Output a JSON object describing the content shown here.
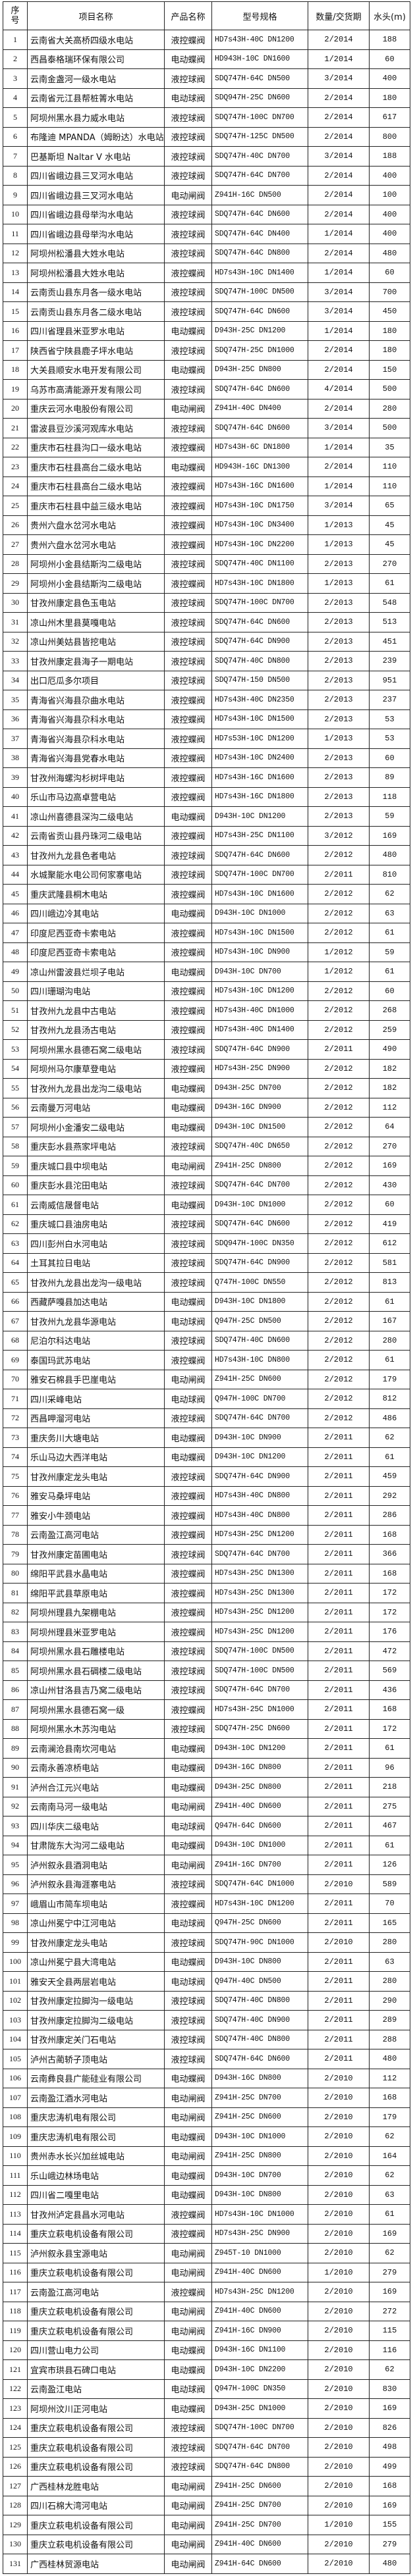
{
  "headers": {
    "no": "序号",
    "name": "项目名称",
    "product": "产品名称",
    "model": "型号规格",
    "qty": "数量/交货期",
    "head": "水头(m)"
  },
  "rows": [
    [
      "1",
      "云南省大关高桥四级水电站",
      "液控蝶阀",
      "HD7s43H-40C DN1200",
      "2/2014",
      "188"
    ],
    [
      "2",
      "西昌泰格瑞环保有限公司",
      "电动蝶阀",
      "HD943H-10C DN1600",
      "1/2014",
      "60"
    ],
    [
      "3",
      "云南金盏河一级水电站",
      "液控球阀",
      "SDQ747H-64C DN500",
      "3/2014",
      "400"
    ],
    [
      "4",
      "云南省元江县帮桩箐水电站",
      "电动球阀",
      "SDQ947H-25C DN600",
      "2/2014",
      "180"
    ],
    [
      "5",
      "阿坝州黑水县力威水电站",
      "液控球阀",
      "SDQ747H-100C DN700",
      "2/2014",
      "617"
    ],
    [
      "6",
      "布隆迪 MPANDA（姆盼达）水电站",
      "液控球阀",
      "SDQ747H-125C DN500",
      "2/2014",
      "800"
    ],
    [
      "7",
      "巴基斯坦 Naltar V 水电站",
      "液控球阀",
      "SDQ747H-40C DN700",
      "3/2014",
      "188"
    ],
    [
      "8",
      "四川省峨边县三叉河水电站",
      "液控球阀",
      "SDQ747H-64C DN700",
      "2/2014",
      "400"
    ],
    [
      "9",
      "四川省峨边县三叉河水电站",
      "电动闸阀",
      "Z941H-16C DN500",
      "2/2014",
      "100"
    ],
    [
      "10",
      "四川省峨边县母举沟水电站",
      "液控球阀",
      "SDQ747H-64C DN600",
      "2/2014",
      "400"
    ],
    [
      "11",
      "四川省峨边县母举沟水电站",
      "液控球阀",
      "SDQ747H-64C DN400",
      "1/2014",
      "400"
    ],
    [
      "12",
      "阿坝州松潘县大姓水电站",
      "液控球阀",
      "SDQ747H-64C DN800",
      "2/2014",
      "480"
    ],
    [
      "13",
      "阿坝州松潘县大姓水电站",
      "液控蝶阀",
      "HD7s43H-10C DN1400",
      "1/2014",
      "60"
    ],
    [
      "14",
      "云南贡山县东月各一级水电站",
      "液控球阀",
      "SDQ747H-100C DN500",
      "3/2014",
      "700"
    ],
    [
      "15",
      "云南贡山县东月各二级水电站",
      "液控球阀",
      "SDQ747H-64C DN600",
      "3/2014",
      "450"
    ],
    [
      "16",
      "四川省理县米亚罗水电站",
      "电动蝶阀",
      "D943H-25C DN1200",
      "1/2014",
      "180"
    ],
    [
      "17",
      "陕西省宁陕县鹿子坪水电站",
      "液控球阀",
      "SDQ747H-25C DN1000",
      "2/2014",
      "180"
    ],
    [
      "18",
      "大关县顺安水电开发有限公司",
      "电动蝶阀",
      "D943H-25C DN800",
      "2/2014",
      "150"
    ],
    [
      "19",
      "乌苏市高清能源开发有限公司",
      "液控球阀",
      "SDQ747H-64C DN600",
      "4/2014",
      "500"
    ],
    [
      "20",
      "重庆云河水电股份有限公司",
      "电动闸阀",
      "Z941H-40C DN400",
      "2/2014",
      "280"
    ],
    [
      "21",
      "雷波县豆沙溪河观库水电站",
      "液控球阀",
      "SDQ747H-64C DN600",
      "3/2014",
      "500"
    ],
    [
      "22",
      "重庆市石柱县沟口一级水电站",
      "液控蝶阀",
      "HD7s43H-6C DN1800",
      "1/2014",
      "35"
    ],
    [
      "23",
      "重庆市石柱县高台二级水电站",
      "电动蝶阀",
      "HD943H-16C DN1300",
      "2/2014",
      "110"
    ],
    [
      "24",
      "重庆市石柱县高台二级水电站",
      "液控蝶阀",
      "HD7s43H-16C DN1600",
      "1/2014",
      "110"
    ],
    [
      "25",
      "重庆市石柱县中益三级水电站",
      "液控蝶阀",
      "HD7s43H-10C DN1750",
      "3/2014",
      "65"
    ],
    [
      "26",
      "贵州六盘水岔河水电站",
      "液控蝶阀",
      "HD7s43H-10C DN3400",
      "1/2013",
      "45"
    ],
    [
      "27",
      "贵州六盘水岔河水电站",
      "液控蝶阀",
      "HD7s43H-10C DN2200",
      "1/2013",
      "45"
    ],
    [
      "28",
      "阿坝州小金县结斯沟二级电站",
      "液控球阀",
      "SDQ747H-40C DN1100",
      "2/2013",
      "270"
    ],
    [
      "29",
      "阿坝州小金县结斯沟二级电站",
      "液控蝶阀",
      "HD7s43H-10C DN1800",
      "1/2013",
      "61"
    ],
    [
      "30",
      "甘孜州康定县色玉电站",
      "液控球阀",
      "SDQ747H-100C DN700",
      "2/2013",
      "548"
    ],
    [
      "31",
      "凉山州木里县莫嘎电站",
      "液控球阀",
      "SDQ747H-64C DN600",
      "2/2013",
      "513"
    ],
    [
      "32",
      "凉山州美姑县皆挖电站",
      "液控球阀",
      "SDQ747H-64C DN900",
      "2/2013",
      "451"
    ],
    [
      "33",
      "甘孜州康定县海子一期电站",
      "液控球阀",
      "SDQ747H-40C DN800",
      "2/2013",
      "239"
    ],
    [
      "34",
      "出口厄瓜多尔项目",
      "液控球阀",
      "SDQ747H-150 DN500",
      "2/2013",
      "951"
    ],
    [
      "35",
      "青海省兴海县尕曲水电站",
      "液控蝶阀",
      "HD7s43H-40C DN2350",
      "2/2013",
      "237"
    ],
    [
      "36",
      "青海省兴海县尕科水电站",
      "液控蝶阀",
      "HD7s43H-10C DN1500",
      "2/2013",
      "53"
    ],
    [
      "37",
      "青海省兴海县尕科水电站",
      "液控蝶阀",
      "HD7s53H-10C DN1200",
      "1/2013",
      "53"
    ],
    [
      "38",
      "青海省兴海县党春水电站",
      "液控蝶阀",
      "HD7s43H-10C DN2400",
      "2/2013",
      "60"
    ],
    [
      "39",
      "甘孜州海螺沟杉树坪电站",
      "液控蝶阀",
      "HD7s43H-16C DN1600",
      "2/2013",
      "89"
    ],
    [
      "40",
      "乐山市马边高卓营电站",
      "液控蝶阀",
      "HD7s43H-16C DN1800",
      "2/2013",
      "118"
    ],
    [
      "41",
      "凉山州喜德县深沟二级电站",
      "电动蝶阀",
      "D943H-10C DN1200",
      "2/2013",
      "59"
    ],
    [
      "42",
      "云南省贡山县丹珠河二级电站",
      "液控蝶阀",
      "HD7s43H-25C DN1100",
      "3/2012",
      "169"
    ],
    [
      "43",
      "甘孜州九龙县色者电站",
      "液控球阀",
      "SDQ747H-64C DN600",
      "2/2012",
      "480"
    ],
    [
      "44",
      "水城聚能水电公司何家寨电站",
      "液控球阀",
      "SDQ747H-100C DN700",
      "2/2011",
      "810"
    ],
    [
      "45",
      "重庆武隆县桐木电站",
      "液控蝶阀",
      "HD7s43H-10C DN1600",
      "2/2012",
      "62"
    ],
    [
      "46",
      "四川峨边冷其电站",
      "电动蝶阀",
      "D943H-10C DN1000",
      "2/2012",
      "63"
    ],
    [
      "47",
      "印度尼西亚奇卡索电站",
      "液控蝶阀",
      "HD7s43H-10C DN1500",
      "2/2012",
      "61"
    ],
    [
      "48",
      "印度尼西亚奇卡索电站",
      "液控蝶阀",
      "HD7s43H-10C DN900",
      "1/2012",
      "59"
    ],
    [
      "49",
      "凉山州雷波县烂坝子电站",
      "电动蝶阀",
      "D943H-10C DN700",
      "1/2012",
      "61"
    ],
    [
      "50",
      "四川珊瑚沟电站",
      "液控蝶阀",
      "HD7s43H-10C DN1200",
      "2/2012",
      "60"
    ],
    [
      "51",
      "甘孜州九龙县中古电站",
      "液控蝶阀",
      "HD7s43H-40C DN1000",
      "2/2012",
      "268"
    ],
    [
      "52",
      "甘孜州九龙县汤古电站",
      "液控蝶阀",
      "HD7s43H-40C DN1400",
      "2/2012",
      "259"
    ],
    [
      "53",
      "阿坝州黑水县德石窝二级电站",
      "液控球阀",
      "SDQ747H-64C DN900",
      "2/2011",
      "490"
    ],
    [
      "54",
      "阿坝州马尔康草登电站",
      "液控蝶阀",
      "HD7s43H-25C DN900",
      "2/2012",
      "182"
    ],
    [
      "55",
      "甘孜州九龙县出龙沟二级电站",
      "电动蝶阀",
      "D943H-25C DN700",
      "2/2012",
      "182"
    ],
    [
      "56",
      "云南曼万河电站",
      "电动蝶阀",
      "D943H-16C DN900",
      "2/2012",
      "112"
    ],
    [
      "57",
      "阿坝州小金潘安二级电站",
      "电动蝶阀",
      "D943H-10C DN1500",
      "2/2012",
      "64"
    ],
    [
      "58",
      "重庆彭水县燕家坪电站",
      "液控球阀",
      "SDQ747H-40C DN650",
      "2/2012",
      "270"
    ],
    [
      "59",
      "重庆城口县中坝电站",
      "电动闸阀",
      "Z941H-25C DN800",
      "2/2012",
      "169"
    ],
    [
      "60",
      "重庆彭水县沱田电站",
      "液控球阀",
      "SDQ747H-64C DN700",
      "2/2012",
      "430"
    ],
    [
      "61",
      "云南威信晟督电站",
      "电动蝶阀",
      "D943H-10C DN1000",
      "2/2012",
      "60"
    ],
    [
      "62",
      "重庆城口县油房电站",
      "液控球阀",
      "SDQ747H-64C DN600",
      "2/2012",
      "419"
    ],
    [
      "63",
      "四川彭州白水河电站",
      "液控球阀",
      "SDQ947H-100C DN350",
      "2/2012",
      "612"
    ],
    [
      "64",
      "土耳其拉日电站",
      "液控球阀",
      "SDQ747H-64C DN900",
      "2/2012",
      "581"
    ],
    [
      "65",
      "甘孜州九龙县出龙沟一级电站",
      "液控球阀",
      "Q747H-100C DN550",
      "2/2012",
      "813"
    ],
    [
      "66",
      "西藏萨嘎县加达电站",
      "电动蝶阀",
      "D943H-10C DN1800",
      "2/2012",
      "61"
    ],
    [
      "67",
      "甘孜州九龙县华源电站",
      "电动球阀",
      "Q947H-25C DN500",
      "2/2012",
      "167"
    ],
    [
      "68",
      "尼泊尔科达电站",
      "液控球阀",
      "SDQ747H-40C DN600",
      "2/2012",
      "280"
    ],
    [
      "69",
      "泰国玛武苏电站",
      "液控蝶阀",
      "HD7s43H-10C DN800",
      "2/2012",
      "61"
    ],
    [
      "70",
      "雅安石棉县手巴崖电站",
      "电动闸阀",
      "Z941H-25C DN600",
      "2/2012",
      "179"
    ],
    [
      "71",
      "四川采峰电站",
      "电动球阀",
      "Q947H-100C DN700",
      "2/2012",
      "812"
    ],
    [
      "72",
      "西昌呷溜河电站",
      "液控球阀",
      "SDQ747H-64C DN700",
      "2/2012",
      "486"
    ],
    [
      "73",
      "重庆务川大塘电站",
      "电动蝶阀",
      "D943H-10C DN900",
      "2/2011",
      "62"
    ],
    [
      "74",
      "乐山马边大西洋电站",
      "电动蝶阀",
      "D943H-10C DN1200",
      "2/2011",
      "61"
    ],
    [
      "75",
      "甘孜州康定龙头电站",
      "液控球阀",
      "SDQ747H-64C DN900",
      "2/2011",
      "459"
    ],
    [
      "76",
      "雅安马桑坪电站",
      "液控蝶阀",
      "HD7s43H-40C DN800",
      "2/2011",
      "292"
    ],
    [
      "77",
      "雅安小牛颈电站",
      "液控蝶阀",
      "HD7s43H-40C DN800",
      "2/2011",
      "286"
    ],
    [
      "78",
      "云南盈江高河电站",
      "液控蝶阀",
      "HD7s43H-25C DN1200",
      "2/2011",
      "168"
    ],
    [
      "79",
      "甘孜州康定苗圃电站",
      "液控球阀",
      "SDQ747H-64C DN700",
      "2/2011",
      "366"
    ],
    [
      "80",
      "绵阳平武县水晶电站",
      "液控蝶阀",
      "HD7s43H-25C DN1300",
      "2/2011",
      "168"
    ],
    [
      "81",
      "绵阳平武县草原电站",
      "液控蝶阀",
      "HD7s43H-25C DN1300",
      "2/2011",
      "172"
    ],
    [
      "82",
      "阿坝州理县九架棚电站",
      "液控蝶阀",
      "HD7s43H-25C DN1200",
      "2/2011",
      "172"
    ],
    [
      "83",
      "阿坝州理县米亚罗电站",
      "液控蝶阀",
      "HD7s43H-25C DN1200",
      "2/2011",
      "176"
    ],
    [
      "84",
      "阿坝州黑水县石雕楼电站",
      "液控球阀",
      "SDQ747H-100C DN500",
      "2/2011",
      "472"
    ],
    [
      "85",
      "阿坝州黑水县石碉楼二级电站",
      "液控球阀",
      "SDQ747H-100C DN500",
      "2/2011",
      "569"
    ],
    [
      "86",
      "凉山州甘洛县吉乃窝二级电站",
      "液控球阀",
      "SDQ747H-64C DN700",
      "2/2011",
      "436"
    ],
    [
      "87",
      "阿坝州黑水县德石窝一级",
      "液控蝶阀",
      "HD7s43H-25C DN1000",
      "2/2011",
      "168"
    ],
    [
      "88",
      "阿坝州黑水木苏沟电站",
      "液控球阀",
      "SDQ747H-25C DN600",
      "2/2011",
      "172"
    ],
    [
      "89",
      "云南澜沧县南坎河电站",
      "电动蝶阀",
      "D943H-10C DN1200",
      "2/2011",
      "61"
    ],
    [
      "90",
      "云南永善凉桥电站",
      "电动蝶阀",
      "D943H-16C DN800",
      "2/2011",
      "96"
    ],
    [
      "91",
      "泸州合江元兴电站",
      "电动蝶阀",
      "D943H-25C DN800",
      "2/2011",
      "218"
    ],
    [
      "92",
      "云南南马河一级电站",
      "电动闸阀",
      "Z941H-40C DN600",
      "2/2011",
      "275"
    ],
    [
      "93",
      "四川华庆二级电站",
      "电动球阀",
      "Q947H-64C DN600",
      "2/2011",
      "467"
    ],
    [
      "94",
      "甘肃陇东大沟河二级电站",
      "电动蝶阀",
      "D943H-10C DN1000",
      "2/2011",
      "61"
    ],
    [
      "95",
      "泸州叙永县酒洞电站",
      "电动闸阀",
      "Z941H-16C DN700",
      "2/2011",
      "126"
    ],
    [
      "96",
      "泸州叙永县海涯寨电站",
      "液控球阀",
      "SDQ747H-64C DN1000",
      "2/2010",
      "589"
    ],
    [
      "97",
      "峨眉山市简车坝电站",
      "液控蝶阀",
      "HD7s43H-10C DN1200",
      "2/2011",
      "70"
    ],
    [
      "98",
      "凉山州冕宁中江河电站",
      "电动球阀",
      "Q947H-25C DN600",
      "2/2011",
      "165"
    ],
    [
      "99",
      "甘孜州康定龙头电站",
      "液控球阀",
      "SDQ747H-90C DN1000",
      "2/2010",
      "280"
    ],
    [
      "100",
      "凉山州冕宁县大湾电站",
      "电动蝶阀",
      "D943H-10C DN800",
      "2/2011",
      "63"
    ],
    [
      "101",
      "雅安天全县两层岩电站",
      "电动球阀",
      "Q947H-40C DN500",
      "2/2011",
      "280"
    ],
    [
      "102",
      "甘孜州康定拉脚沟一级电站",
      "液控球阀",
      "SDQ747H-40C DN800",
      "2/2011",
      "290"
    ],
    [
      "103",
      "甘孜州康定拉脚沟二级电站",
      "液控球阀",
      "SDQ747H-40C DN900",
      "2/2011",
      "289"
    ],
    [
      "104",
      "甘孜州康定关门石电站",
      "液控球阀",
      "SDQ747H-40C DN800",
      "2/2011",
      "288"
    ],
    [
      "105",
      "泸州古蔺轿子顶电站",
      "液控球阀",
      "SDQ747H-64C DN600",
      "2/2011",
      "480"
    ],
    [
      "106",
      "云南彝良县广能硅业有限公司",
      "电动蝶阀",
      "D943H-16C DN800",
      "2/2010",
      "112"
    ],
    [
      "107",
      "云南盈江酒水河电站",
      "电动闸阀",
      "Z941H-25C DN700",
      "2/2010",
      "168"
    ],
    [
      "108",
      "重庆忠涛机电有限公司",
      "电动闸阀",
      "Z941H-25C DN600",
      "2/2010",
      "179"
    ],
    [
      "109",
      "重庆忠涛机电有限公司",
      "电动蝶阀",
      "D943H-10C DN1000",
      "2/2010",
      "62"
    ],
    [
      "110",
      "贵州赤水长兴加丝城电站",
      "电动闸阀",
      "Z941H-25C DN800",
      "2/2010",
      "164"
    ],
    [
      "111",
      "乐山峨边林场电站",
      "电动蝶阀",
      "D943H-10C DN700",
      "2/2010",
      "62"
    ],
    [
      "112",
      "四川省二嘎里电站",
      "电动蝶阀",
      "D943H-10C DN800",
      "2/2010",
      "63"
    ],
    [
      "113",
      "甘孜州泸定县昌水河电站",
      "液控蝶阀",
      "HD7s43H-10C DN1000",
      "2/2010",
      "61"
    ],
    [
      "114",
      "重庆立萩电机设备有限公司",
      "液控蝶阀",
      "HD7s43H-25C DN900",
      "2/2010",
      "169"
    ],
    [
      "115",
      "泸州叙永县宝源电站",
      "电动闸阀",
      "Z945T-10 DN1000",
      "2/2010",
      "62"
    ],
    [
      "116",
      "重庆立萩电机设备有限公司",
      "电动闸阀",
      "Z941H-40C DN600",
      "1/2010",
      "279"
    ],
    [
      "117",
      "云南盈江高河电站",
      "液控蝶阀",
      "HD7s43H-25C DN1200",
      "2/2010",
      "169"
    ],
    [
      "118",
      "重庆立萩电机设备有限公司",
      "电动闸阀",
      "Z941H-40C DN600",
      "2/2010",
      "272"
    ],
    [
      "119",
      "重庆立萩电机设备有限公司",
      "电动闸阀",
      "Z941H-16C DN900",
      "2/2010",
      "115"
    ],
    [
      "120",
      "四川营山电力公司",
      "电动蝶阀",
      "D943H-16C DN1100",
      "2/2010",
      "116"
    ],
    [
      "121",
      "宜宾市珙县石碑口电站",
      "电动蝶阀",
      "D943H-10C DN2200",
      "2/2010",
      "62"
    ],
    [
      "122",
      "云南盈江电站",
      "电动球阀",
      "Q947H-100C DN350",
      "2/2010",
      "830"
    ],
    [
      "123",
      "阿坝州汶川正河电站",
      "电动蝶阀",
      "D943H-25C DN1000",
      "2/2010",
      "169"
    ],
    [
      "124",
      "重庆立萩电机设备有限公司",
      "液控球阀",
      "SDQ747H-100C DN700",
      "2/2010",
      "826"
    ],
    [
      "125",
      "重庆立萩电机设备有限公司",
      "液控球阀",
      "SDQ747H-64C DN700",
      "2/2010",
      "498"
    ],
    [
      "126",
      "重庆立萩电机设备有限公司",
      "液控球阀",
      "SDQ747H-64C DN800",
      "2/2010",
      "499"
    ],
    [
      "127",
      "广西桂林龙胜电站",
      "电动闸阀",
      "Z941H-25C DN600",
      "2/2010",
      "168"
    ],
    [
      "128",
      "四川石棉大湾河电站",
      "电动闸阀",
      "Z941H-25C DN700",
      "2/2010",
      "169"
    ],
    [
      "129",
      "重庆立萩电机设备有限公司",
      "电动闸阀",
      "Z941H-25C DN700",
      "1/2010",
      "155"
    ],
    [
      "130",
      "重庆立萩电机设备有限公司",
      "电动闸阀",
      "Z941H-40C DN600",
      "2/2010",
      "279"
    ],
    [
      "131",
      "广西桂林贸源电站",
      "电动闸阀",
      "Z941H-64C DN600",
      "2/2010",
      "480"
    ]
  ]
}
